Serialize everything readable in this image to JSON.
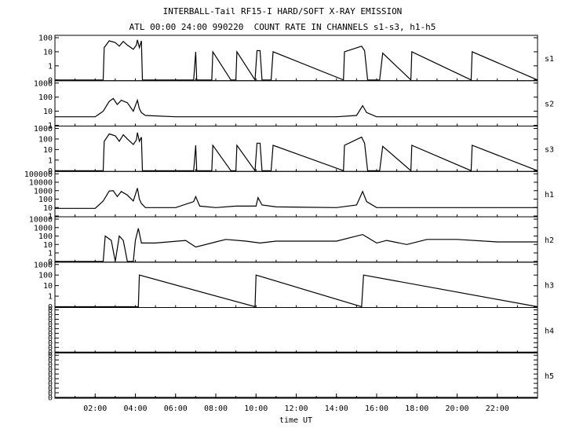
{
  "chart_data": {
    "type": "line",
    "title": "INTERBALL-Tail RF15-I HARD/SOFT X-RAY EMISSION",
    "subtitle": "ATL 00:00 24:00 990220  COUNT RATE IN CHANNELS s1-s3, h1-h5",
    "xlabel": "time UT",
    "xlim": [
      0,
      24
    ],
    "x_tick_labels": [
      "02:00",
      "04:00",
      "06:00",
      "08:00",
      "10:00",
      "12:00",
      "14:00",
      "16:00",
      "18:00",
      "20:00",
      "22:00"
    ],
    "panels": [
      {
        "name": "s1",
        "y_tick_labels": [
          "0",
          "1",
          "10",
          "100"
        ],
        "series": [
          {
            "x": [
              0.0,
              2.4,
              2.45,
              2.7,
              3.0,
              3.2,
              3.4,
              3.6,
              3.9,
              4.05,
              4.1,
              4.2,
              4.3,
              4.35,
              6.9,
              7.0,
              7.05,
              7.8,
              7.85,
              8.75,
              9.0,
              9.05,
              9.95,
              10.05,
              10.2,
              10.3,
              10.75,
              10.85,
              14.35,
              14.4,
              15.25,
              15.4,
              15.55,
              16.15,
              16.3,
              17.7,
              17.75,
              20.7,
              20.75,
              24.0
            ],
            "y": [
              0,
              0,
              20,
              60,
              45,
              25,
              55,
              30,
              15,
              30,
              70,
              20,
              60,
              0,
              0,
              10,
              0,
              0,
              10,
              0,
              0,
              10,
              0,
              12,
              12,
              0,
              0,
              10,
              0,
              10,
              25,
              12,
              0,
              0,
              8,
              0,
              10,
              0,
              10,
              0
            ]
          }
        ]
      },
      {
        "name": "s2",
        "y_tick_labels": [
          "1",
          "10",
          "100",
          "1000"
        ],
        "series": [
          {
            "x": [
              0.0,
              2.0,
              2.4,
              2.7,
              2.9,
              3.1,
              3.3,
              3.6,
              3.9,
              4.1,
              4.2,
              4.3,
              4.5,
              6.0,
              8.0,
              10.0,
              12.0,
              14.0,
              15.0,
              15.3,
              15.5,
              16.0,
              18.0,
              20.0,
              22.0,
              24.0
            ],
            "y": [
              4,
              4,
              10,
              50,
              80,
              30,
              60,
              40,
              10,
              60,
              15,
              8,
              5,
              4,
              4,
              4,
              4,
              4,
              5,
              25,
              8,
              4,
              4,
              4,
              4,
              4
            ]
          }
        ]
      },
      {
        "name": "s3",
        "y_tick_labels": [
          "0",
          "1",
          "10",
          "100",
          "1000"
        ],
        "series": [
          {
            "x": [
              0.0,
              2.4,
              2.45,
              2.7,
              3.0,
              3.2,
              3.4,
              3.6,
              3.9,
              4.05,
              4.1,
              4.2,
              4.3,
              4.35,
              6.9,
              7.0,
              7.05,
              7.8,
              7.85,
              8.75,
              9.0,
              9.05,
              9.95,
              10.05,
              10.2,
              10.3,
              10.75,
              10.85,
              14.35,
              14.4,
              15.25,
              15.4,
              15.55,
              16.15,
              16.3,
              17.7,
              17.75,
              20.7,
              20.75,
              24.0
            ],
            "y": [
              0,
              0,
              60,
              300,
              200,
              60,
              250,
              100,
              30,
              80,
              400,
              60,
              150,
              0,
              0,
              25,
              0,
              0,
              25,
              0,
              0,
              25,
              0,
              40,
              40,
              0,
              0,
              25,
              0,
              25,
              150,
              40,
              0,
              0,
              20,
              0,
              25,
              0,
              25,
              0
            ]
          }
        ]
      },
      {
        "name": "h1",
        "y_tick_labels": [
          "1",
          "10",
          "100",
          "1000",
          "10000",
          "100000"
        ],
        "series": [
          {
            "x": [
              0.0,
              2.0,
              2.4,
              2.7,
              2.9,
              3.1,
              3.3,
              3.6,
              3.9,
              4.1,
              4.2,
              4.3,
              4.5,
              6.0,
              6.9,
              7.0,
              7.2,
              8.0,
              9.0,
              10.0,
              10.1,
              10.3,
              11.0,
              14.0,
              15.0,
              15.3,
              15.5,
              16.0,
              18.0,
              20.0,
              22.0,
              24.0
            ],
            "y": [
              8,
              8,
              60,
              900,
              1000,
              200,
              800,
              300,
              60,
              2000,
              100,
              30,
              10,
              10,
              50,
              200,
              15,
              10,
              15,
              15,
              150,
              20,
              12,
              10,
              20,
              800,
              50,
              10,
              10,
              10,
              10,
              10
            ]
          }
        ]
      },
      {
        "name": "h2",
        "y_tick_labels": [
          "0",
          "1",
          "10",
          "100",
          "1000",
          "10000"
        ],
        "series": [
          {
            "x": [
              0.0,
              2.4,
              2.5,
              2.8,
              3.0,
              3.2,
              3.4,
              3.6,
              3.9,
              4.0,
              4.15,
              4.3,
              5.0,
              6.5,
              7.0,
              8.0,
              8.5,
              9.5,
              10.2,
              11.0,
              14.0,
              15.3,
              16.0,
              16.5,
              17.5,
              18.5,
              20.0,
              22.0,
              24.0
            ],
            "y": [
              0,
              0,
              100,
              30,
              0,
              100,
              30,
              0,
              0,
              30,
              800,
              15,
              15,
              30,
              5,
              20,
              40,
              25,
              15,
              25,
              25,
              150,
              15,
              30,
              10,
              40,
              40,
              20,
              20
            ]
          }
        ]
      },
      {
        "name": "h3",
        "y_tick_labels": [
          "0",
          "1",
          "10",
          "100",
          "1000"
        ],
        "series": [
          {
            "x": [
              0.0,
              4.15,
              4.2,
              9.95,
              10.0,
              15.25,
              15.35,
              24.0
            ],
            "y": [
              0,
              0,
              100,
              0,
              100,
              0,
              100,
              0
            ]
          }
        ]
      },
      {
        "name": "h4",
        "y_tick_labels": [
          "0",
          "0",
          "0",
          "0",
          "0",
          "0",
          "0",
          "0",
          "0",
          "0"
        ],
        "series": [
          {
            "x": [
              0,
              24
            ],
            "y": [
              0,
              0
            ]
          }
        ]
      },
      {
        "name": "h5",
        "y_tick_labels": [
          "0",
          "0",
          "0",
          "0",
          "0",
          "0",
          "0",
          "0",
          "0",
          "0"
        ],
        "series": [
          {
            "x": [
              0,
              24
            ],
            "y": [
              0,
              0
            ]
          }
        ]
      }
    ],
    "grid": false,
    "line_color": "#000000"
  }
}
